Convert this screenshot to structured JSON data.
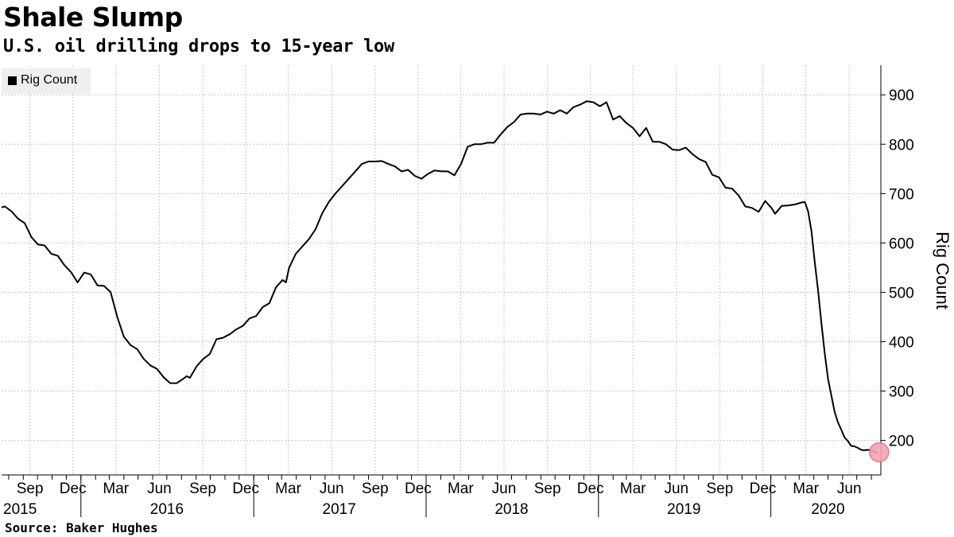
{
  "header": {
    "title": "Shale Slump",
    "subtitle": "U.S. oil drilling drops to 15-year low"
  },
  "footer": {
    "source": "Source: Baker Hughes"
  },
  "legend": {
    "label": "Rig Count"
  },
  "colors": {
    "line": "#000000",
    "marker": "#f5a3ae",
    "marker_stroke": "#e0707f",
    "grid": "#c8c8c8",
    "legend_bg": "#efefef"
  },
  "chart_data": {
    "type": "line",
    "title": "Shale Slump",
    "subtitle": "U.S. oil drilling drops to 15-year low",
    "ylabel": "Rig Count",
    "xlabel": "",
    "ylim": [
      130,
      960
    ],
    "yticks": [
      200,
      300,
      400,
      500,
      600,
      700,
      800,
      900
    ],
    "grid": true,
    "legend_placement": "top-left",
    "x_start": "2015-07-17",
    "x_end": "2020-08-21",
    "month_ticks": [
      {
        "label": "Sep",
        "date": "2015-09-15"
      },
      {
        "label": "Dec",
        "date": "2015-12-15"
      },
      {
        "label": "Mar",
        "date": "2016-03-15"
      },
      {
        "label": "Jun",
        "date": "2016-06-15"
      },
      {
        "label": "Sep",
        "date": "2016-09-15"
      },
      {
        "label": "Dec",
        "date": "2016-12-15"
      },
      {
        "label": "Mar",
        "date": "2017-03-15"
      },
      {
        "label": "Jun",
        "date": "2017-06-15"
      },
      {
        "label": "Sep",
        "date": "2017-09-15"
      },
      {
        "label": "Dec",
        "date": "2017-12-15"
      },
      {
        "label": "Mar",
        "date": "2018-03-15"
      },
      {
        "label": "Jun",
        "date": "2018-06-15"
      },
      {
        "label": "Sep",
        "date": "2018-09-15"
      },
      {
        "label": "Dec",
        "date": "2018-12-15"
      },
      {
        "label": "Mar",
        "date": "2019-03-15"
      },
      {
        "label": "Jun",
        "date": "2019-06-15"
      },
      {
        "label": "Sep",
        "date": "2019-09-15"
      },
      {
        "label": "Dec",
        "date": "2019-12-15"
      },
      {
        "label": "Mar",
        "date": "2020-03-15"
      },
      {
        "label": "Jun",
        "date": "2020-06-15"
      }
    ],
    "year_labels": [
      {
        "label": "2015",
        "date": "2015-10-15"
      },
      {
        "label": "2016",
        "date": "2016-07-01"
      },
      {
        "label": "2017",
        "date": "2017-07-01"
      },
      {
        "label": "2018",
        "date": "2018-07-01"
      },
      {
        "label": "2019",
        "date": "2019-07-01"
      },
      {
        "label": "2020",
        "date": "2020-05-01"
      }
    ],
    "year_separators": [
      "2016-01-01",
      "2017-01-01",
      "2018-01-01",
      "2019-01-01",
      "2020-01-01"
    ],
    "highlight": {
      "date": "2020-08-14",
      "value": 176
    },
    "series": [
      {
        "name": "Rig Count",
        "points": [
          [
            "2015-07-17",
            672
          ],
          [
            "2015-07-24",
            674
          ],
          [
            "2015-08-07",
            664
          ],
          [
            "2015-08-21",
            649
          ],
          [
            "2015-09-04",
            640
          ],
          [
            "2015-09-18",
            612
          ],
          [
            "2015-10-02",
            597
          ],
          [
            "2015-10-16",
            595
          ],
          [
            "2015-10-30",
            578
          ],
          [
            "2015-11-13",
            574
          ],
          [
            "2015-11-27",
            555
          ],
          [
            "2015-12-11",
            541
          ],
          [
            "2015-12-25",
            520
          ],
          [
            "2016-01-08",
            540
          ],
          [
            "2016-01-22",
            536
          ],
          [
            "2016-02-05",
            514
          ],
          [
            "2016-02-19",
            513
          ],
          [
            "2016-03-04",
            500
          ],
          [
            "2016-03-18",
            450
          ],
          [
            "2016-04-01",
            410
          ],
          [
            "2016-04-15",
            393
          ],
          [
            "2016-04-29",
            385
          ],
          [
            "2016-05-13",
            365
          ],
          [
            "2016-05-27",
            352
          ],
          [
            "2016-06-10",
            345
          ],
          [
            "2016-06-24",
            328
          ],
          [
            "2016-07-08",
            316
          ],
          [
            "2016-07-22",
            316
          ],
          [
            "2016-08-05",
            325
          ],
          [
            "2016-08-12",
            330
          ],
          [
            "2016-08-19",
            327
          ],
          [
            "2016-09-02",
            350
          ],
          [
            "2016-09-16",
            365
          ],
          [
            "2016-09-30",
            375
          ],
          [
            "2016-10-14",
            405
          ],
          [
            "2016-10-28",
            408
          ],
          [
            "2016-11-11",
            415
          ],
          [
            "2016-11-25",
            425
          ],
          [
            "2016-12-09",
            432
          ],
          [
            "2016-12-23",
            447
          ],
          [
            "2017-01-06",
            452
          ],
          [
            "2017-01-20",
            470
          ],
          [
            "2017-02-03",
            478
          ],
          [
            "2017-02-17",
            510
          ],
          [
            "2017-03-03",
            525
          ],
          [
            "2017-03-10",
            520
          ],
          [
            "2017-03-17",
            550
          ],
          [
            "2017-03-31",
            578
          ],
          [
            "2017-04-14",
            593
          ],
          [
            "2017-04-28",
            608
          ],
          [
            "2017-05-12",
            628
          ],
          [
            "2017-05-26",
            660
          ],
          [
            "2017-06-09",
            683
          ],
          [
            "2017-06-23",
            700
          ],
          [
            "2017-07-07",
            715
          ],
          [
            "2017-07-21",
            730
          ],
          [
            "2017-08-04",
            745
          ],
          [
            "2017-08-18",
            760
          ],
          [
            "2017-09-01",
            765
          ],
          [
            "2017-09-15",
            765
          ],
          [
            "2017-09-29",
            766
          ],
          [
            "2017-10-13",
            760
          ],
          [
            "2017-10-27",
            755
          ],
          [
            "2017-11-10",
            745
          ],
          [
            "2017-11-24",
            748
          ],
          [
            "2017-12-08",
            736
          ],
          [
            "2017-12-22",
            730
          ],
          [
            "2018-01-05",
            740
          ],
          [
            "2018-01-19",
            747
          ],
          [
            "2018-02-02",
            745
          ],
          [
            "2018-02-16",
            745
          ],
          [
            "2018-03-02",
            737
          ],
          [
            "2018-03-16",
            760
          ],
          [
            "2018-03-30",
            795
          ],
          [
            "2018-04-13",
            800
          ],
          [
            "2018-04-27",
            800
          ],
          [
            "2018-05-11",
            803
          ],
          [
            "2018-05-25",
            803
          ],
          [
            "2018-06-08",
            820
          ],
          [
            "2018-06-22",
            835
          ],
          [
            "2018-07-06",
            845
          ],
          [
            "2018-07-20",
            860
          ],
          [
            "2018-08-03",
            862
          ],
          [
            "2018-08-17",
            862
          ],
          [
            "2018-08-31",
            860
          ],
          [
            "2018-09-14",
            866
          ],
          [
            "2018-09-28",
            862
          ],
          [
            "2018-10-12",
            869
          ],
          [
            "2018-10-26",
            862
          ],
          [
            "2018-11-09",
            875
          ],
          [
            "2018-11-23",
            880
          ],
          [
            "2018-12-07",
            887
          ],
          [
            "2018-12-21",
            885
          ],
          [
            "2019-01-04",
            877
          ],
          [
            "2019-01-18",
            885
          ],
          [
            "2019-02-01",
            850
          ],
          [
            "2019-02-15",
            857
          ],
          [
            "2019-03-01",
            843
          ],
          [
            "2019-03-15",
            833
          ],
          [
            "2019-03-29",
            816
          ],
          [
            "2019-04-12",
            833
          ],
          [
            "2019-04-26",
            805
          ],
          [
            "2019-05-10",
            805
          ],
          [
            "2019-05-24",
            800
          ],
          [
            "2019-06-07",
            789
          ],
          [
            "2019-06-21",
            788
          ],
          [
            "2019-07-05",
            793
          ],
          [
            "2019-07-19",
            780
          ],
          [
            "2019-08-02",
            770
          ],
          [
            "2019-08-16",
            764
          ],
          [
            "2019-08-30",
            738
          ],
          [
            "2019-09-13",
            733
          ],
          [
            "2019-09-27",
            712
          ],
          [
            "2019-10-11",
            710
          ],
          [
            "2019-10-25",
            696
          ],
          [
            "2019-11-08",
            674
          ],
          [
            "2019-11-22",
            671
          ],
          [
            "2019-12-06",
            663
          ],
          [
            "2019-12-20",
            685
          ],
          [
            "2020-01-03",
            670
          ],
          [
            "2020-01-10",
            659
          ],
          [
            "2020-01-24",
            675
          ],
          [
            "2020-02-07",
            676
          ],
          [
            "2020-02-21",
            678
          ],
          [
            "2020-03-06",
            682
          ],
          [
            "2020-03-13",
            683
          ],
          [
            "2020-03-20",
            664
          ],
          [
            "2020-03-27",
            624
          ],
          [
            "2020-04-03",
            562
          ],
          [
            "2020-04-10",
            504
          ],
          [
            "2020-04-17",
            438
          ],
          [
            "2020-04-24",
            378
          ],
          [
            "2020-05-01",
            325
          ],
          [
            "2020-05-08",
            292
          ],
          [
            "2020-05-15",
            258
          ],
          [
            "2020-05-22",
            237
          ],
          [
            "2020-05-29",
            222
          ],
          [
            "2020-06-05",
            206
          ],
          [
            "2020-06-12",
            199
          ],
          [
            "2020-06-19",
            189
          ],
          [
            "2020-06-26",
            188
          ],
          [
            "2020-07-03",
            185
          ],
          [
            "2020-07-10",
            181
          ],
          [
            "2020-07-17",
            180
          ],
          [
            "2020-07-24",
            181
          ],
          [
            "2020-07-31",
            180
          ],
          [
            "2020-08-07",
            176
          ],
          [
            "2020-08-14",
            176
          ]
        ]
      }
    ]
  }
}
